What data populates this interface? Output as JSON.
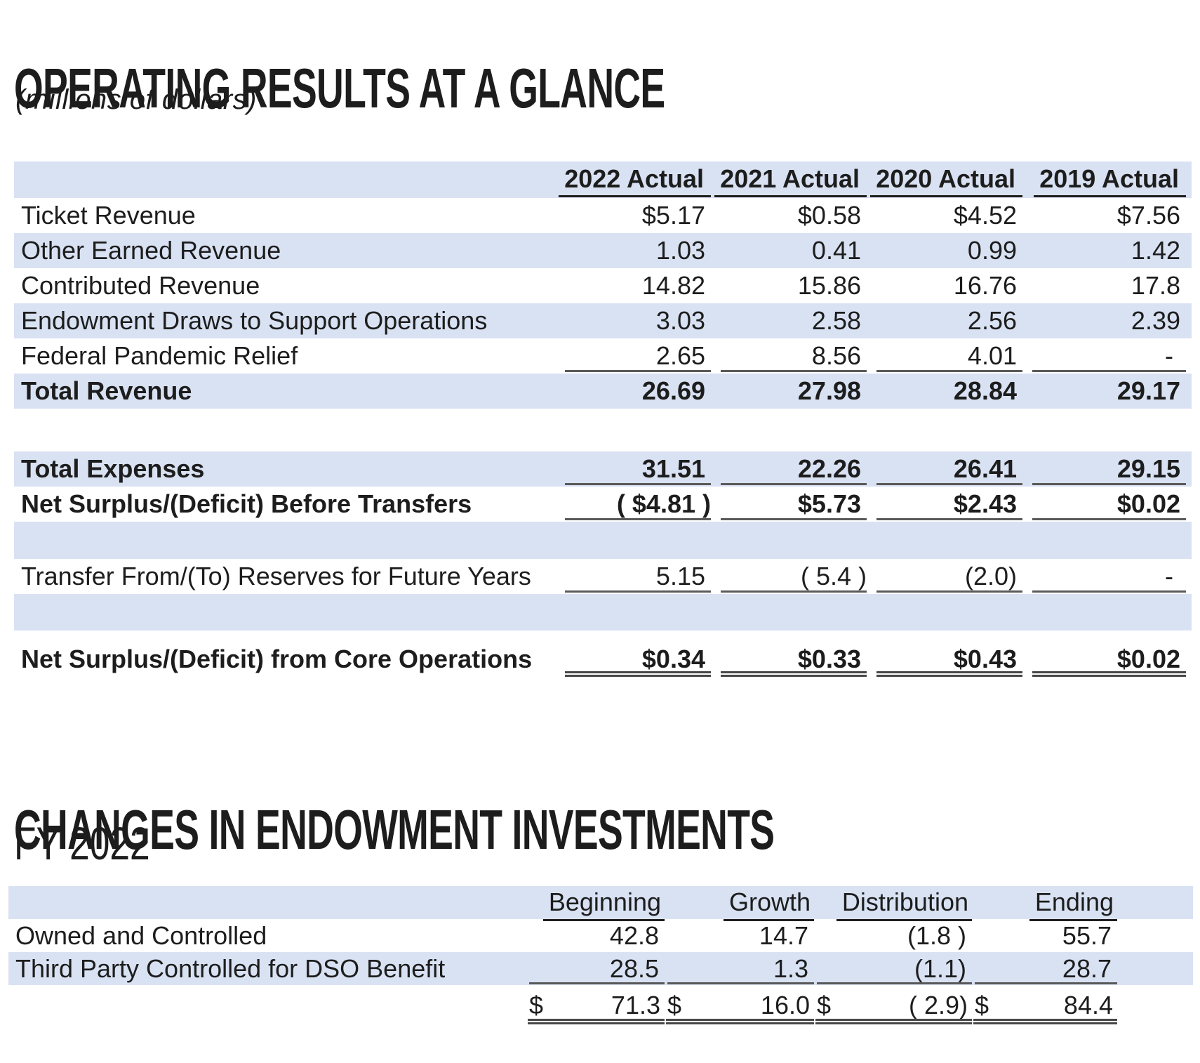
{
  "colors": {
    "band": "#d9e2f3",
    "rule": "#5a5a5a",
    "text": "#1d1d1d"
  },
  "section1": {
    "title": "OPERATING RESULTS AT A GLANCE",
    "subtitle": "(millions of dollars)",
    "table": {
      "columns": [
        "2022 Actual",
        "2021 Actual",
        "2020 Actual",
        "2019 Actual"
      ],
      "rows": [
        {
          "label": "Ticket Revenue",
          "values": [
            "$5.17",
            "$0.58",
            "$4.52",
            "$7.56"
          ]
        },
        {
          "label": "Other Earned Revenue",
          "values": [
            "1.03",
            "0.41",
            "0.99",
            "1.42"
          ]
        },
        {
          "label": "Contributed Revenue",
          "values": [
            "14.82",
            "15.86",
            "16.76",
            "17.8"
          ]
        },
        {
          "label": "Endowment Draws to Support Operations",
          "values": [
            "3.03",
            "2.58",
            "2.56",
            "2.39"
          ]
        },
        {
          "label": "Federal Pandemic Relief",
          "values": [
            "2.65",
            "8.56",
            "4.01",
            "-"
          ]
        },
        {
          "label": "Total Revenue",
          "values": [
            "26.69",
            "27.98",
            "28.84",
            "29.17"
          ]
        },
        {
          "label": "Total Expenses",
          "values": [
            "31.51",
            "22.26",
            "26.41",
            "29.15"
          ]
        },
        {
          "label": "Net Surplus/(Deficit) Before Transfers",
          "values": [
            "( $4.81 )",
            "$5.73",
            "$2.43",
            "$0.02"
          ]
        },
        {
          "label": "Transfer From/(To) Reserves for Future Years",
          "values": [
            "5.15",
            "( 5.4 )",
            "(2.0)",
            "-"
          ]
        },
        {
          "label": "Net Surplus/(Deficit) from Core Operations",
          "values": [
            "$0.34",
            "$0.33",
            "$0.43",
            "$0.02"
          ]
        }
      ]
    }
  },
  "section2": {
    "title": "CHANGES IN ENDOWMENT INVESTMENTS",
    "subtitle": "FY 2022",
    "table": {
      "columns": [
        "Beginning",
        "Growth",
        "Distribution",
        "Ending"
      ],
      "rows": [
        {
          "label": "Owned and Controlled",
          "values": [
            "42.8",
            "14.7",
            "(1.8 )",
            "55.7"
          ]
        },
        {
          "label": "Third Party Controlled for DSO Benefit",
          "values": [
            "28.5",
            "1.3",
            "(1.1)",
            "28.7"
          ]
        },
        {
          "label": "",
          "currency": "$",
          "values": [
            "71.3",
            "16.0",
            "( 2.9)",
            "84.4"
          ]
        }
      ]
    }
  }
}
